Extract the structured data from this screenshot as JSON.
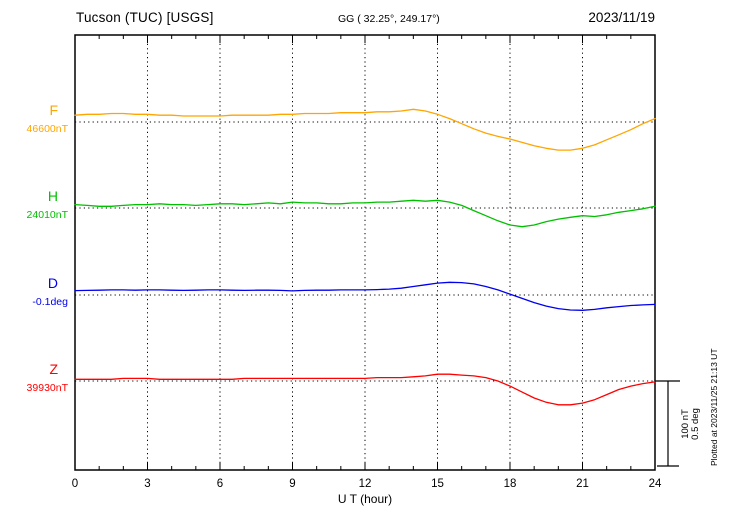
{
  "header": {
    "station": "Tucson (TUC)  [USGS]",
    "coords": "GG ( 32.25°, 249.17°)",
    "date": "2023/11/19"
  },
  "axis": {
    "x_label": "U T (hour)",
    "x_ticks": [
      0,
      3,
      6,
      9,
      12,
      15,
      18,
      21,
      24
    ],
    "grid_hours": [
      3,
      6,
      9,
      12,
      15,
      18,
      21
    ]
  },
  "scalebar": {
    "label_nt": "100 nT",
    "label_deg": "0.5 deg"
  },
  "footer_note": "Plotted at 2023/11/25 21:13 UT",
  "chart_data": {
    "type": "line",
    "title": "Tucson (TUC)  [USGS] magnetogram 2023/11/19",
    "xlabel": "U T (hour)",
    "xlim": [
      0,
      24
    ],
    "grid": "dotted vertical every 3 h, dotted baseline per component",
    "scale": {
      "nT_per_division": 100,
      "deg_per_division": 0.5
    },
    "x_hours": [
      0,
      0.5,
      1,
      1.5,
      2,
      2.5,
      3,
      3.5,
      4,
      4.5,
      5,
      5.5,
      6,
      6.5,
      7,
      7.5,
      8,
      8.5,
      9,
      9.5,
      10,
      10.5,
      11,
      11.5,
      12,
      12.5,
      13,
      13.5,
      14,
      14.5,
      15,
      15.5,
      16,
      16.5,
      17,
      17.5,
      18,
      18.5,
      19,
      19.5,
      20,
      20.5,
      21,
      21.5,
      22,
      22.5,
      23,
      23.5,
      24
    ],
    "series": [
      {
        "name": "F",
        "baseline_label": "46600nT",
        "baseline_value": 46600,
        "unit": "nT",
        "color": "#ffa500",
        "offsets": [
          8,
          9,
          9,
          10,
          10,
          9,
          9,
          8,
          8,
          7,
          7,
          7,
          7,
          8,
          8,
          8,
          8,
          9,
          9,
          10,
          10,
          10,
          11,
          11,
          11,
          12,
          12,
          13,
          15,
          13,
          9,
          4,
          -2,
          -8,
          -13,
          -17,
          -20,
          -24,
          -28,
          -31,
          -33,
          -33,
          -31,
          -27,
          -21,
          -15,
          -9,
          -2,
          4
        ]
      },
      {
        "name": "H",
        "baseline_label": "24010nT",
        "baseline_value": 24010,
        "unit": "nT",
        "color": "#00c000",
        "offsets": [
          4,
          3,
          2,
          2,
          3,
          4,
          4,
          5,
          4,
          4,
          3,
          4,
          5,
          5,
          4,
          5,
          6,
          5,
          7,
          6,
          6,
          5,
          5,
          6,
          6,
          7,
          7,
          8,
          9,
          8,
          9,
          7,
          3,
          -3,
          -9,
          -15,
          -20,
          -22,
          -20,
          -16,
          -13,
          -11,
          -9,
          -10,
          -8,
          -5,
          -3,
          -1,
          2
        ]
      },
      {
        "name": "D",
        "baseline_label": "-0.1deg",
        "baseline_value": -0.1,
        "unit": "deg",
        "color": "#0000ee",
        "offsets": [
          0.026,
          0.027,
          0.028,
          0.03,
          0.03,
          0.028,
          0.03,
          0.03,
          0.028,
          0.027,
          0.028,
          0.03,
          0.03,
          0.028,
          0.027,
          0.028,
          0.028,
          0.027,
          0.024,
          0.027,
          0.028,
          0.028,
          0.03,
          0.03,
          0.03,
          0.032,
          0.035,
          0.04,
          0.05,
          0.06,
          0.07,
          0.075,
          0.073,
          0.065,
          0.05,
          0.03,
          0.005,
          -0.02,
          -0.045,
          -0.065,
          -0.08,
          -0.088,
          -0.09,
          -0.085,
          -0.075,
          -0.068,
          -0.062,
          -0.058,
          -0.055
        ]
      },
      {
        "name": "Z",
        "baseline_label": "39930nT",
        "baseline_value": 39930,
        "unit": "nT",
        "color": "#ff0000",
        "offsets": [
          2,
          2,
          2,
          2,
          3,
          3,
          3,
          2,
          2,
          2,
          2,
          2,
          2,
          2,
          3,
          3,
          3,
          3,
          3,
          3,
          3,
          3,
          3,
          3,
          3,
          4,
          4,
          4,
          5,
          6,
          8,
          8,
          7,
          6,
          4,
          0,
          -6,
          -13,
          -20,
          -25,
          -28,
          -28,
          -26,
          -22,
          -16,
          -10,
          -6,
          -3,
          -1
        ]
      }
    ]
  }
}
